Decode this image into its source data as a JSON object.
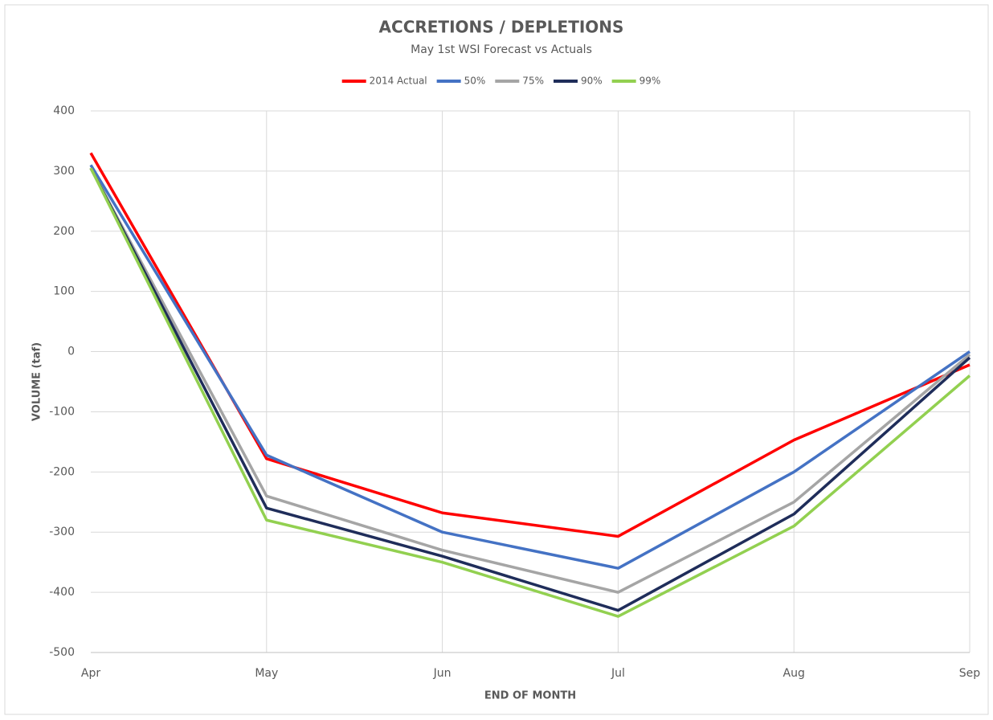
{
  "chart_data": {
    "type": "line",
    "title": "ACCRETIONS / DEPLETIONS",
    "subtitle": "May 1st WSI Forecast vs Actuals",
    "x_label": "END OF MONTH",
    "y_label": "VOLUME (taf)",
    "categories": [
      "Apr",
      "May",
      "Jun",
      "Jul",
      "Aug",
      "Sep"
    ],
    "series": [
      {
        "name": "2014 Actual",
        "color": "#ff0000",
        "values": [
          330,
          -178,
          -268,
          -307,
          -147,
          -22
        ]
      },
      {
        "name": "50%",
        "color": "#4472c4",
        "values": [
          310,
          -172,
          -300,
          -360,
          -200,
          0
        ]
      },
      {
        "name": "75%",
        "color": "#a5a5a5",
        "values": [
          305,
          -240,
          -330,
          -400,
          -250,
          -5
        ]
      },
      {
        "name": "90%",
        "color": "#1f2d5a",
        "values": [
          305,
          -260,
          -340,
          -430,
          -270,
          -10
        ]
      },
      {
        "name": "99%",
        "color": "#92d050",
        "values": [
          305,
          -280,
          -350,
          -440,
          -290,
          -40
        ]
      }
    ],
    "ylim": [
      -500,
      400
    ],
    "yticks": [
      -500,
      -400,
      -300,
      -200,
      -100,
      0,
      100,
      200,
      300,
      400
    ],
    "grid": true,
    "legend": "top"
  }
}
